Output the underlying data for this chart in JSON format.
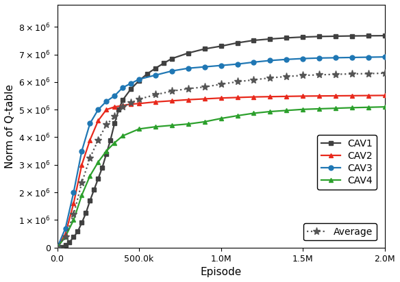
{
  "title": "",
  "xlabel": "Episode",
  "ylabel": "Norm of Q-table",
  "xlim": [
    0,
    2000000
  ],
  "ylim": [
    0,
    8800000
  ],
  "series": {
    "CAV1": {
      "color": "#404040",
      "linestyle": "-",
      "marker": "s",
      "markersize": 5,
      "x": [
        0,
        25000,
        50000,
        75000,
        100000,
        125000,
        150000,
        175000,
        200000,
        225000,
        250000,
        275000,
        300000,
        325000,
        350000,
        375000,
        400000,
        450000,
        500000,
        550000,
        600000,
        650000,
        700000,
        800000,
        900000,
        1000000,
        1100000,
        1200000,
        1300000,
        1400000,
        1500000,
        1600000,
        1700000,
        1800000,
        1900000,
        2000000
      ],
      "y": [
        0,
        30000,
        100000,
        200000,
        380000,
        580000,
        900000,
        1250000,
        1700000,
        2100000,
        2500000,
        2900000,
        3400000,
        3900000,
        4500000,
        5000000,
        5350000,
        5750000,
        6050000,
        6300000,
        6500000,
        6680000,
        6850000,
        7050000,
        7200000,
        7300000,
        7420000,
        7510000,
        7560000,
        7600000,
        7630000,
        7650000,
        7660000,
        7670000,
        7675000,
        7680000
      ]
    },
    "CAV2": {
      "color": "#e8291c",
      "linestyle": "-",
      "marker": "^",
      "markersize": 5,
      "x": [
        0,
        50000,
        100000,
        150000,
        200000,
        250000,
        300000,
        350000,
        400000,
        450000,
        500000,
        600000,
        700000,
        800000,
        900000,
        1000000,
        1100000,
        1200000,
        1300000,
        1400000,
        1500000,
        1600000,
        1700000,
        1800000,
        1900000,
        2000000
      ],
      "y": [
        0,
        500000,
        1600000,
        3000000,
        3900000,
        4600000,
        5000000,
        5100000,
        5150000,
        5200000,
        5220000,
        5280000,
        5320000,
        5360000,
        5390000,
        5420000,
        5440000,
        5460000,
        5470000,
        5480000,
        5490000,
        5495000,
        5500000,
        5505000,
        5510000,
        5515000
      ]
    },
    "CAV3": {
      "color": "#1f77b4",
      "linestyle": "-",
      "marker": "o",
      "markersize": 5,
      "x": [
        0,
        50000,
        100000,
        150000,
        200000,
        250000,
        300000,
        350000,
        400000,
        450000,
        500000,
        600000,
        700000,
        800000,
        900000,
        1000000,
        1100000,
        1200000,
        1300000,
        1400000,
        1500000,
        1600000,
        1700000,
        1800000,
        1900000,
        2000000
      ],
      "y": [
        0,
        700000,
        2000000,
        3500000,
        4500000,
        5000000,
        5300000,
        5500000,
        5800000,
        5950000,
        6100000,
        6250000,
        6400000,
        6500000,
        6550000,
        6600000,
        6650000,
        6720000,
        6780000,
        6820000,
        6850000,
        6870000,
        6880000,
        6890000,
        6900000,
        6910000
      ]
    },
    "CAV4": {
      "color": "#2ca02c",
      "linestyle": "-",
      "marker": "^",
      "markersize": 5,
      "x": [
        0,
        50000,
        100000,
        150000,
        200000,
        250000,
        300000,
        350000,
        400000,
        500000,
        600000,
        700000,
        800000,
        900000,
        1000000,
        1100000,
        1200000,
        1300000,
        1400000,
        1500000,
        1600000,
        1700000,
        1800000,
        1900000,
        2000000
      ],
      "y": [
        0,
        400000,
        1000000,
        1900000,
        2600000,
        3100000,
        3500000,
        3800000,
        4050000,
        4300000,
        4380000,
        4430000,
        4480000,
        4560000,
        4680000,
        4780000,
        4870000,
        4930000,
        4970000,
        5010000,
        5030000,
        5050000,
        5070000,
        5085000,
        5100000
      ]
    },
    "Average": {
      "color": "#555555",
      "linestyle": ":",
      "marker": "*",
      "markersize": 8,
      "x": [
        0,
        50000,
        100000,
        150000,
        200000,
        250000,
        300000,
        350000,
        400000,
        450000,
        500000,
        600000,
        700000,
        800000,
        900000,
        1000000,
        1100000,
        1200000,
        1300000,
        1400000,
        1500000,
        1600000,
        1700000,
        1800000,
        1900000,
        2000000
      ],
      "y": [
        0,
        400000,
        1200000,
        2350000,
        3250000,
        3900000,
        4450000,
        4750000,
        5100000,
        5250000,
        5380000,
        5540000,
        5670000,
        5760000,
        5820000,
        5920000,
        6010000,
        6080000,
        6150000,
        6200000,
        6240000,
        6260000,
        6280000,
        6295000,
        6305000,
        6320000
      ]
    }
  },
  "xtick_values": [
    0,
    500000,
    1000000,
    1500000,
    2000000
  ],
  "ytick_values": [
    0,
    1000000,
    2000000,
    3000000,
    4000000,
    5000000,
    6000000,
    7000000,
    8000000
  ],
  "linewidth": 1.6
}
